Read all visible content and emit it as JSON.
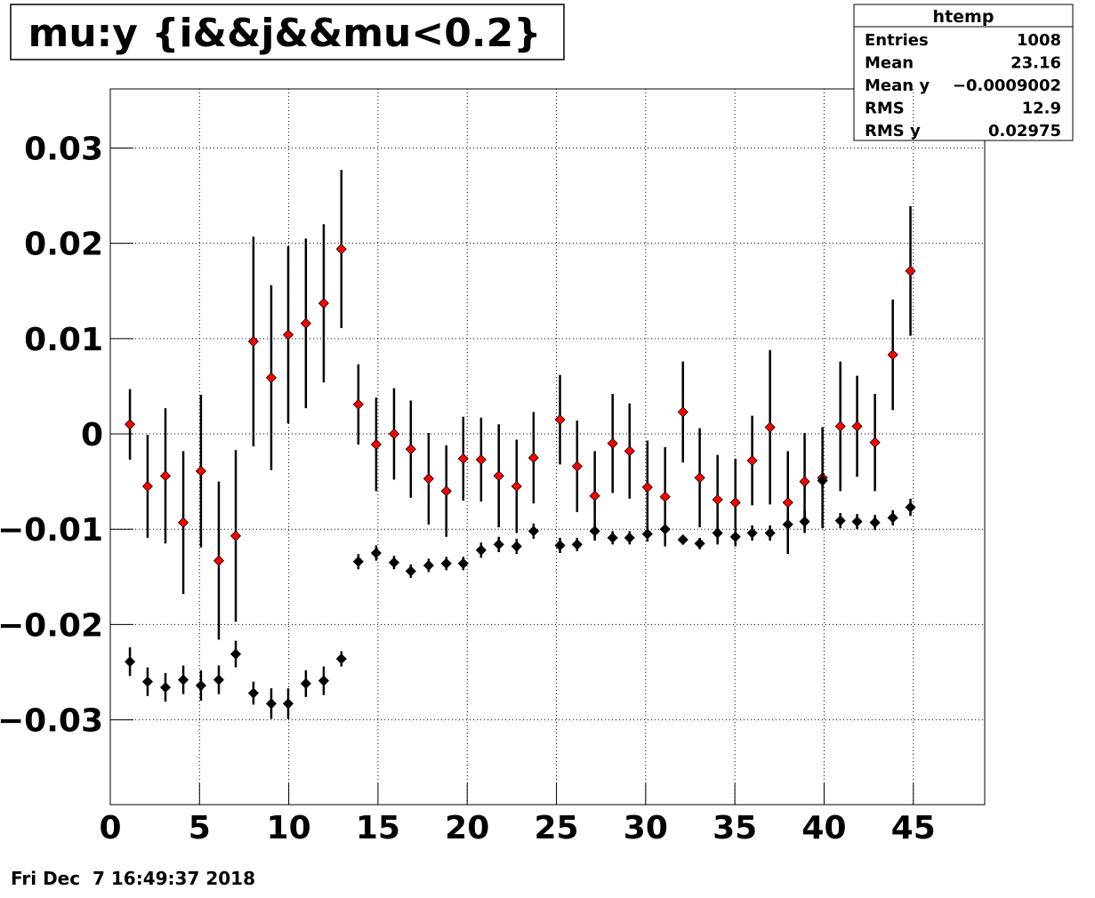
{
  "chart_data": {
    "type": "errorbar",
    "title": "mu:y {i&&j&&mu<0.2}",
    "footer": "Fri Dec  7 16:49:37 2018",
    "stats": {
      "title": "htemp",
      "rows": [
        [
          "Entries",
          "1008"
        ],
        [
          "Mean",
          "23.16"
        ],
        [
          "Mean y",
          "−0.0009002"
        ],
        [
          "RMS",
          "12.9"
        ],
        [
          "RMS y",
          "0.02975"
        ]
      ]
    },
    "x": [
      1.1,
      2.09,
      3.09,
      4.09,
      5.08,
      6.08,
      7.03,
      8.02,
      9.02,
      9.97,
      10.96,
      11.96,
      12.95,
      13.9,
      14.9,
      15.9,
      16.84,
      17.84,
      18.83,
      19.78,
      20.78,
      21.77,
      22.77,
      23.72,
      25.2,
      26.16,
      27.15,
      28.15,
      29.1,
      30.1,
      31.09,
      32.09,
      33.03,
      34.03,
      35.03,
      35.97,
      36.97,
      37.97,
      38.91,
      39.91,
      40.91,
      41.85,
      42.85,
      43.85,
      44.84
    ],
    "series": [
      {
        "color": "#ff0000",
        "values": [
          0.001,
          -0.0055,
          -0.0044,
          -0.0093,
          -0.0039,
          -0.0133,
          -0.0107,
          0.0097,
          0.0059,
          0.0104,
          0.0116,
          0.0137,
          0.0194,
          0.0031,
          -0.0011,
          0.0,
          -0.0016,
          -0.0047,
          -0.006,
          -0.0026,
          -0.0027,
          -0.0044,
          -0.0055,
          -0.0025,
          0.0015,
          -0.0034,
          -0.0065,
          -0.001,
          -0.0018,
          -0.0056,
          -0.0066,
          0.0023,
          -0.0046,
          -0.0069,
          -0.0072,
          -0.0028,
          0.0007,
          -0.0072,
          -0.005,
          -0.0046,
          0.0008,
          0.0008,
          -0.0009,
          0.0083,
          0.0171
        ],
        "errors": [
          0.0037,
          0.0054,
          0.0071,
          0.0075,
          0.008,
          0.0083,
          0.009,
          0.011,
          0.0097,
          0.0093,
          0.0089,
          0.0083,
          0.0083,
          0.0042,
          0.0049,
          0.0048,
          0.0051,
          0.0048,
          0.0048,
          0.0044,
          0.0044,
          0.0054,
          0.0049,
          0.0048,
          0.0047,
          0.0048,
          0.0047,
          0.0052,
          0.005,
          0.0049,
          0.0052,
          0.0053,
          0.0052,
          0.0047,
          0.0046,
          0.0047,
          0.0081,
          0.0054,
          0.0051,
          0.0053,
          0.0068,
          0.0053,
          0.0051,
          0.0058,
          0.0068
        ]
      },
      {
        "color": "#000000",
        "values": [
          -0.0239,
          -0.026,
          -0.0266,
          -0.0258,
          -0.0264,
          -0.0258,
          -0.0231,
          -0.0272,
          -0.0283,
          -0.0283,
          -0.0262,
          -0.0259,
          -0.0236,
          -0.0134,
          -0.0125,
          -0.0135,
          -0.0144,
          -0.0138,
          -0.0136,
          -0.0136,
          -0.0122,
          -0.0116,
          -0.0118,
          -0.0102,
          -0.0117,
          -0.0116,
          -0.0102,
          -0.0109,
          -0.0109,
          -0.0105,
          -0.01,
          -0.0111,
          -0.0115,
          -0.0104,
          -0.0108,
          -0.0104,
          -0.0104,
          -0.0095,
          -0.0092,
          -0.0049,
          -0.0091,
          -0.0092,
          -0.0093,
          -0.0088,
          -0.0077
        ],
        "errors": [
          0.0015,
          0.0015,
          0.0015,
          0.0015,
          0.0016,
          0.0015,
          0.0014,
          0.0012,
          0.0016,
          0.0016,
          0.0014,
          0.0015,
          0.0008,
          0.0008,
          0.0008,
          0.0007,
          0.0007,
          0.0007,
          0.0007,
          0.0007,
          0.0008,
          0.0008,
          0.0008,
          0.0008,
          0.0008,
          0.0007,
          0.0008,
          0.0007,
          0.0007,
          0.0008,
          0.001,
          0.0005,
          0.0006,
          0.0008,
          0.0006,
          0.0008,
          0.0008,
          0.0013,
          0.0012,
          0.0008,
          0.0008,
          0.0008,
          0.0008,
          0.0008,
          0.0009
        ]
      }
    ],
    "xlim": [
      0,
      49
    ],
    "xticks": [
      0,
      5,
      10,
      15,
      20,
      25,
      30,
      35,
      40,
      45
    ],
    "ylim": [
      -0.0389,
      0.0362
    ],
    "yticks": [
      {
        "value": -0.03,
        "label": "−0.03"
      },
      {
        "value": -0.02,
        "label": "−0.02"
      },
      {
        "value": -0.01,
        "label": "−0.01"
      },
      0,
      0.01,
      0.02,
      0.03
    ],
    "grid": true
  }
}
